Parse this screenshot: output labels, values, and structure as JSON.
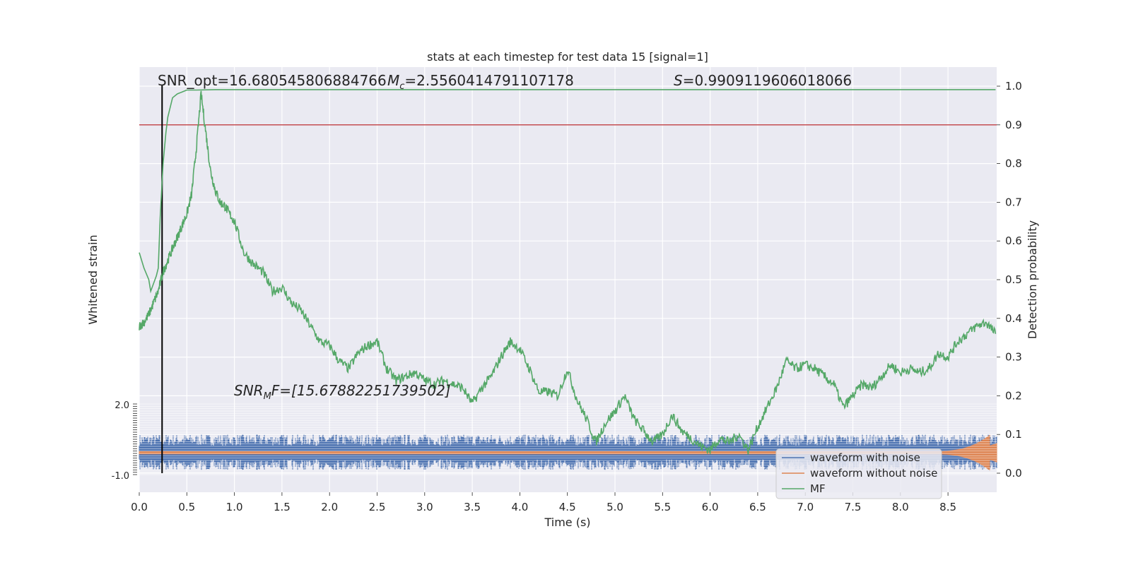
{
  "chart_data": {
    "type": "line",
    "title": "stats at each timestep for test data 15 [signal=1]",
    "xlabel": "Time (s)",
    "ylabel_left": "Whitened strain",
    "ylabel_right": "Detection probability",
    "xlim": [
      0.0,
      9.0
    ],
    "ylim_right": [
      -0.05,
      1.05
    ],
    "ylim_left": [
      -1.0,
      2.0
    ],
    "x_ticks": [
      "0.0",
      "0.5",
      "1.0",
      "1.5",
      "2.0",
      "2.5",
      "3.0",
      "3.5",
      "4.0",
      "4.5",
      "5.0",
      "5.5",
      "6.0",
      "6.5",
      "7.0",
      "7.5",
      "8.0",
      "8.5"
    ],
    "y_right_ticks": [
      "0.0",
      "0.1",
      "0.2",
      "0.3",
      "0.4",
      "0.5",
      "0.6",
      "0.7",
      "0.8",
      "0.9",
      "1.0"
    ],
    "annotations": {
      "snr_opt": "SNR_opt=16.680545806884766",
      "mc_label": "M",
      "mc_sub": "c",
      "mc_value": "=2.5560414791107178",
      "s_label": "S",
      "s_value": "=0.9909119606018066",
      "snrmf_label": "SNR",
      "snrmf_sub": "M",
      "snrmf_rest": "F=[15.67882251739502]"
    },
    "threshold": 0.9,
    "marker_time": 0.24,
    "legend": {
      "placement": "lower-right",
      "entries": [
        "waveform with noise",
        "waveform without noise",
        "MF"
      ]
    },
    "series": [
      {
        "name": "MF",
        "x": [
          0.0,
          0.05,
          0.1,
          0.15,
          0.2,
          0.25,
          0.3,
          0.35,
          0.4,
          0.45,
          0.5,
          0.55,
          0.6,
          0.65,
          0.7,
          0.75,
          0.8,
          0.85,
          0.9,
          0.95,
          1.0,
          1.1,
          1.2,
          1.3,
          1.4,
          1.5,
          1.6,
          1.7,
          1.8,
          1.9,
          2.0,
          2.1,
          2.2,
          2.3,
          2.4,
          2.5,
          2.6,
          2.7,
          2.8,
          2.9,
          3.0,
          3.1,
          3.2,
          3.3,
          3.4,
          3.5,
          3.6,
          3.7,
          3.8,
          3.9,
          4.0,
          4.1,
          4.2,
          4.3,
          4.4,
          4.5,
          4.6,
          4.7,
          4.8,
          4.9,
          5.0,
          5.1,
          5.2,
          5.3,
          5.4,
          5.5,
          5.6,
          5.7,
          5.8,
          5.9,
          6.0,
          6.1,
          6.2,
          6.3,
          6.4,
          6.5,
          6.6,
          6.7,
          6.8,
          6.9,
          7.0,
          7.1,
          7.2,
          7.3,
          7.4,
          7.5,
          7.6,
          7.7,
          7.8,
          7.9,
          8.0,
          8.1,
          8.2,
          8.3,
          8.4,
          8.5,
          8.6,
          8.7,
          8.8,
          8.9,
          9.0
        ],
        "y": [
          0.38,
          0.39,
          0.41,
          0.44,
          0.47,
          0.52,
          0.55,
          0.58,
          0.61,
          0.64,
          0.67,
          0.72,
          0.84,
          0.98,
          0.88,
          0.78,
          0.73,
          0.7,
          0.69,
          0.67,
          0.65,
          0.57,
          0.54,
          0.52,
          0.47,
          0.48,
          0.44,
          0.42,
          0.38,
          0.34,
          0.33,
          0.29,
          0.27,
          0.31,
          0.33,
          0.34,
          0.27,
          0.24,
          0.25,
          0.26,
          0.24,
          0.23,
          0.24,
          0.23,
          0.22,
          0.18,
          0.22,
          0.25,
          0.3,
          0.34,
          0.32,
          0.27,
          0.21,
          0.21,
          0.2,
          0.27,
          0.19,
          0.14,
          0.08,
          0.13,
          0.16,
          0.2,
          0.14,
          0.11,
          0.08,
          0.1,
          0.15,
          0.11,
          0.09,
          0.07,
          0.06,
          0.09,
          0.08,
          0.1,
          0.06,
          0.12,
          0.17,
          0.22,
          0.29,
          0.27,
          0.28,
          0.27,
          0.25,
          0.23,
          0.17,
          0.2,
          0.23,
          0.22,
          0.25,
          0.28,
          0.26,
          0.27,
          0.26,
          0.27,
          0.31,
          0.3,
          0.34,
          0.36,
          0.38,
          0.39,
          0.36
        ]
      },
      {
        "name": "detection probability",
        "x": [
          0.0,
          0.05,
          0.1,
          0.12,
          0.15,
          0.18,
          0.2,
          0.22,
          0.25,
          0.28,
          0.3,
          0.33,
          0.35,
          0.4,
          0.45,
          0.5,
          0.6,
          0.8,
          1.0,
          2.0,
          4.0,
          6.0,
          8.0,
          9.0
        ],
        "y": [
          0.57,
          0.53,
          0.5,
          0.47,
          0.49,
          0.51,
          0.53,
          0.66,
          0.8,
          0.88,
          0.92,
          0.95,
          0.97,
          0.98,
          0.985,
          0.99,
          0.99,
          0.991,
          0.991,
          0.991,
          0.991,
          0.991,
          0.991,
          0.991
        ]
      }
    ]
  }
}
